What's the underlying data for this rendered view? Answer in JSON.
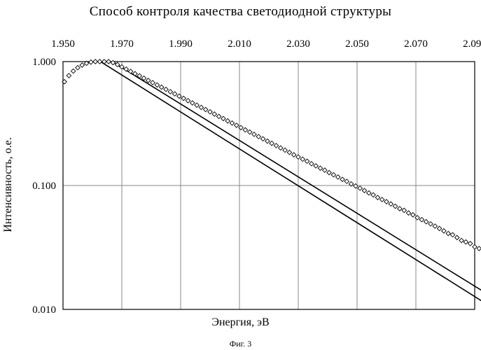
{
  "chart_data": {
    "type": "scatter",
    "title": "Способ контроля качества светодиодной структуры",
    "xlabel": "Энергия, эВ",
    "ylabel": "Интенсивность, о.е.",
    "caption": "Фиг. 3",
    "x_axis_position": "top",
    "xlim": [
      1.95,
      2.09
    ],
    "ylim": [
      0.01,
      1.0
    ],
    "y_scale": "log",
    "x_ticks": [
      "1.950",
      "1.970",
      "1.990",
      "2.010",
      "2.030",
      "2.050",
      "2.070",
      "2.090"
    ],
    "y_ticks": [
      "1.000",
      "0.100",
      "0.010"
    ],
    "grid": true,
    "legend": "none",
    "series": [
      {
        "style": "open-diamond-markers",
        "x": [
          1.9505,
          1.952,
          1.9535,
          1.955,
          1.9565,
          1.958,
          1.9595,
          1.961,
          1.9625,
          1.964,
          1.9655,
          1.967,
          1.9685,
          1.97,
          1.9715,
          1.973,
          1.9745,
          1.976,
          1.9775,
          1.979,
          1.9805,
          1.982,
          1.9835,
          1.985,
          1.9865,
          1.988,
          1.9895,
          1.991,
          1.9925,
          1.994,
          1.9955,
          1.997,
          1.9985,
          2.0,
          2.0015,
          2.003,
          2.0045,
          2.006,
          2.0075,
          2.009,
          2.0105,
          2.012,
          2.0135,
          2.015,
          2.0165,
          2.018,
          2.0195,
          2.021,
          2.0225,
          2.024,
          2.0255,
          2.027,
          2.0285,
          2.03,
          2.0315,
          2.033,
          2.0345,
          2.036,
          2.0375,
          2.039,
          2.0405,
          2.042,
          2.0435,
          2.045,
          2.0465,
          2.048,
          2.0495,
          2.051,
          2.0525,
          2.054,
          2.0555,
          2.057,
          2.0585,
          2.06,
          2.0615,
          2.063,
          2.0645,
          2.066,
          2.0675,
          2.069,
          2.0705,
          2.072,
          2.0735,
          2.075,
          2.0765,
          2.078,
          2.0795,
          2.081,
          2.0825,
          2.084,
          2.0855,
          2.087,
          2.0885,
          2.09,
          2.0915,
          2.093,
          2.0945
        ],
        "y": [
          0.688,
          0.771,
          0.838,
          0.893,
          0.937,
          0.969,
          0.99,
          1.0,
          1.0,
          1.0,
          1.0,
          0.98,
          0.945,
          0.906,
          0.869,
          0.833,
          0.799,
          0.767,
          0.735,
          0.705,
          0.676,
          0.648,
          0.622,
          0.597,
          0.572,
          0.549,
          0.526,
          0.505,
          0.484,
          0.464,
          0.445,
          0.427,
          0.41,
          0.393,
          0.377,
          0.361,
          0.347,
          0.332,
          0.319,
          0.306,
          0.293,
          0.281,
          0.27,
          0.259,
          0.248,
          0.238,
          0.228,
          0.219,
          0.21,
          0.201,
          0.193,
          0.185,
          0.177,
          0.17,
          0.163,
          0.157,
          0.15,
          0.144,
          0.138,
          0.133,
          0.127,
          0.122,
          0.117,
          0.112,
          0.108,
          0.103,
          0.099,
          0.095,
          0.091,
          0.087,
          0.084,
          0.08,
          0.077,
          0.074,
          0.071,
          0.068,
          0.065,
          0.063,
          0.06,
          0.058,
          0.055,
          0.053,
          0.051,
          0.049,
          0.047,
          0.045,
          0.043,
          0.041,
          0.04,
          0.038,
          0.036,
          0.035,
          0.034,
          0.032,
          0.031,
          0.03,
          0.028
        ]
      },
      {
        "style": "solid-line",
        "x": [
          1.967,
          2.095
        ],
        "y": [
          0.991,
          0.013
        ]
      },
      {
        "style": "solid-line",
        "x": [
          1.963,
          2.095
        ],
        "y": [
          0.991,
          0.0107
        ]
      }
    ]
  }
}
